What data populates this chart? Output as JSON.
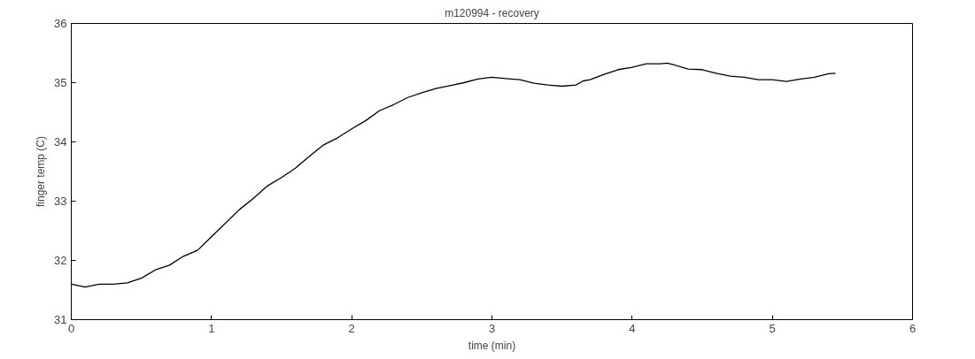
{
  "chart_data": {
    "type": "line",
    "title": "m120994 - recovery",
    "xlabel": "time (min)",
    "ylabel": "finger temp (C)",
    "x": [
      0,
      0.1,
      0.2,
      0.3,
      0.4,
      0.5,
      0.6,
      0.7,
      0.8,
      0.9,
      1.0,
      1.1,
      1.2,
      1.3,
      1.4,
      1.5,
      1.6,
      1.7,
      1.8,
      1.9,
      2.0,
      2.1,
      2.2,
      2.3,
      2.4,
      2.5,
      2.6,
      2.7,
      2.8,
      2.9,
      3.0,
      3.1,
      3.2,
      3.3,
      3.4,
      3.5,
      3.6,
      3.65,
      3.7,
      3.8,
      3.9,
      4.0,
      4.1,
      4.2,
      4.25,
      4.3,
      4.4,
      4.5,
      4.6,
      4.7,
      4.8,
      4.9,
      5.0,
      5.1,
      5.2,
      5.3,
      5.4,
      5.45
    ],
    "series": [
      {
        "color": "#000000",
        "values": [
          31.6,
          31.55,
          31.6,
          31.6,
          31.62,
          31.7,
          31.84,
          31.92,
          32.07,
          32.17,
          32.4,
          32.63,
          32.86,
          33.05,
          33.26,
          33.4,
          33.56,
          33.76,
          33.95,
          34.07,
          34.22,
          34.36,
          34.53,
          34.63,
          34.75,
          34.83,
          34.9,
          34.95,
          35.0,
          35.06,
          35.09,
          35.07,
          35.05,
          34.99,
          34.96,
          34.94,
          34.96,
          35.03,
          35.05,
          35.14,
          35.22,
          35.26,
          35.32,
          35.32,
          35.33,
          35.3,
          35.23,
          35.22,
          35.16,
          35.11,
          35.09,
          35.05,
          35.05,
          35.02,
          35.06,
          35.09,
          35.15,
          35.16
        ]
      }
    ],
    "xlim": [
      0,
      6
    ],
    "ylim": [
      31,
      36
    ],
    "xticks": [
      0,
      1,
      2,
      3,
      4,
      5,
      6
    ],
    "yticks": [
      31,
      32,
      33,
      34,
      35,
      36
    ],
    "grid": false,
    "marker": "none",
    "line_style": "solid"
  }
}
